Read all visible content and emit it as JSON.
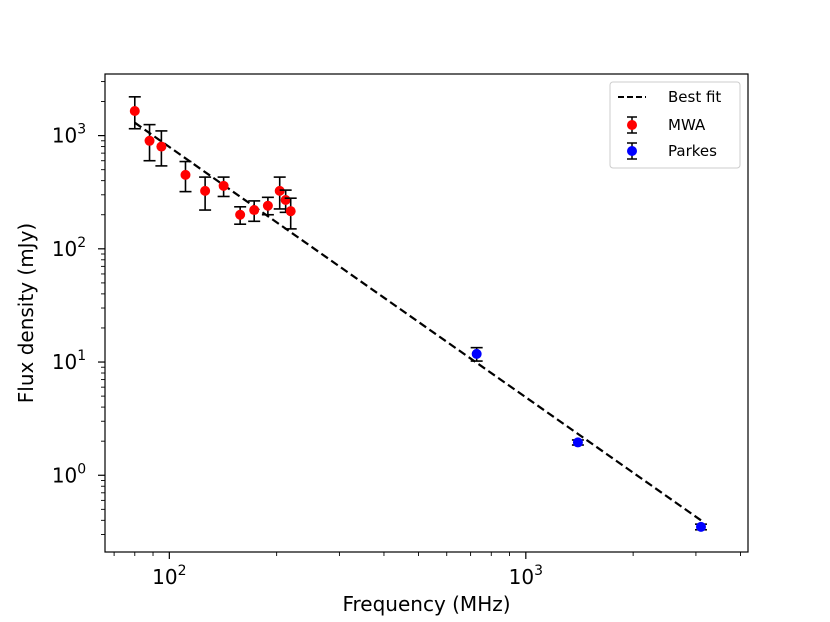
{
  "chart_data": {
    "type": "scatter",
    "xscale": "log",
    "yscale": "log",
    "xlabel": "Frequency (MHz)",
    "ylabel": "Flux density (mJy)",
    "xlim": [
      66,
      4200
    ],
    "ylim": [
      0.21,
      3500
    ],
    "xticks": [
      {
        "value": 100,
        "base": "10",
        "exp": "2"
      },
      {
        "value": 1000,
        "base": "10",
        "exp": "3"
      }
    ],
    "yticks": [
      {
        "value": 1,
        "base": "10",
        "exp": "0"
      },
      {
        "value": 10,
        "base": "10",
        "exp": "1"
      },
      {
        "value": 100,
        "base": "10",
        "exp": "2"
      },
      {
        "value": 1000,
        "base": "10",
        "exp": "3"
      }
    ],
    "legend_position": "top-right",
    "fit": {
      "name": "Best fit",
      "style": "dashed",
      "color": "#000000",
      "x": [
        80,
        3100
      ],
      "y": [
        1300,
        0.4
      ]
    },
    "series": [
      {
        "name": "MWA",
        "color": "#ff0000",
        "points": [
          {
            "x": 80,
            "y": 1650,
            "ylo": 1150,
            "yhi": 2200
          },
          {
            "x": 88,
            "y": 900,
            "ylo": 600,
            "yhi": 1250
          },
          {
            "x": 95,
            "y": 800,
            "ylo": 540,
            "yhi": 1100
          },
          {
            "x": 111,
            "y": 450,
            "ylo": 320,
            "yhi": 590
          },
          {
            "x": 126,
            "y": 325,
            "ylo": 220,
            "yhi": 430
          },
          {
            "x": 142,
            "y": 360,
            "ylo": 290,
            "yhi": 430
          },
          {
            "x": 158,
            "y": 200,
            "ylo": 165,
            "yhi": 235
          },
          {
            "x": 173,
            "y": 220,
            "ylo": 175,
            "yhi": 265
          },
          {
            "x": 189,
            "y": 240,
            "ylo": 200,
            "yhi": 285
          },
          {
            "x": 204,
            "y": 325,
            "ylo": 225,
            "yhi": 430
          },
          {
            "x": 212,
            "y": 270,
            "ylo": 210,
            "yhi": 330
          },
          {
            "x": 219,
            "y": 215,
            "ylo": 150,
            "yhi": 280
          }
        ]
      },
      {
        "name": "Parkes",
        "color": "#0000ff",
        "points": [
          {
            "x": 728,
            "y": 11.8,
            "ylo": 10.2,
            "yhi": 13.4
          },
          {
            "x": 1400,
            "y": 1.95,
            "ylo": 1.85,
            "yhi": 2.05
          },
          {
            "x": 3100,
            "y": 0.35,
            "ylo": 0.33,
            "yhi": 0.37
          }
        ]
      }
    ]
  }
}
